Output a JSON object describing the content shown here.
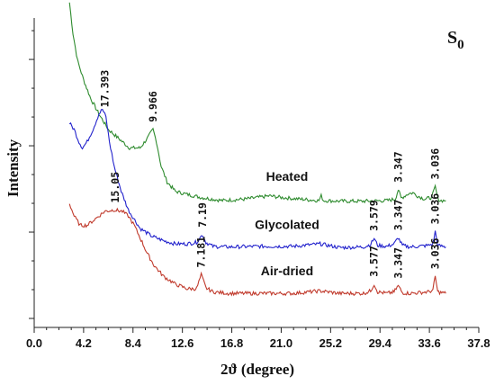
{
  "chart_data": {
    "type": "line",
    "corner_label": "S",
    "corner_label_subscript": "0",
    "xlabel": "2ϑ (degree)",
    "ylabel": "Intensity",
    "xlim": [
      0.0,
      37.8
    ],
    "xticks": [
      "0.0",
      "4.2",
      "8.4",
      "12.6",
      "16.8",
      "21.0",
      "25.2",
      "29.4",
      "33.6",
      "37.8"
    ],
    "series": [
      {
        "name": "Heated",
        "color": "#2e8b2e",
        "x": [
          3.0,
          3.3,
          3.7,
          4.2,
          4.8,
          5.5,
          6.3,
          7.2,
          8.1,
          9.0,
          9.6,
          10.1,
          10.4,
          10.8,
          11.3,
          12.0,
          13.0,
          14.2,
          16.0,
          18.0,
          20.0,
          21.0,
          22.5,
          24.2,
          24.4,
          24.6,
          26.0,
          28.0,
          30.0,
          30.7,
          30.95,
          31.2,
          31.8,
          32.2,
          32.6,
          33.2,
          33.8,
          34.1,
          34.3,
          34.5,
          35.0
        ],
        "values": [
          1.05,
          0.95,
          0.86,
          0.8,
          0.74,
          0.69,
          0.64,
          0.61,
          0.58,
          0.58,
          0.61,
          0.64,
          0.6,
          0.52,
          0.47,
          0.44,
          0.43,
          0.42,
          0.41,
          0.415,
          0.425,
          0.42,
          0.415,
          0.41,
          0.425,
          0.41,
          0.408,
          0.408,
          0.41,
          0.415,
          0.445,
          0.418,
          0.432,
          0.435,
          0.425,
          0.415,
          0.42,
          0.455,
          0.418,
          0.41,
          0.41
        ],
        "peaks": [
          {
            "x": 10.1,
            "label": "9.966"
          },
          {
            "x": 30.95,
            "label": "3.347"
          },
          {
            "x": 34.1,
            "label": "3.036"
          }
        ]
      },
      {
        "name": "Glycolated",
        "color": "#2222cc",
        "x": [
          3.0,
          3.4,
          3.8,
          4.1,
          4.5,
          5.0,
          5.5,
          5.8,
          6.1,
          6.4,
          6.8,
          7.4,
          8.0,
          9.0,
          10.0,
          11.0,
          12.0,
          13.0,
          13.8,
          14.3,
          14.6,
          15.2,
          16.5,
          19.0,
          22.0,
          24.3,
          26.0,
          28.0,
          28.6,
          28.9,
          29.2,
          30.0,
          30.6,
          30.95,
          31.3,
          32.0,
          33.5,
          33.9,
          34.1,
          34.3,
          35.0
        ],
        "values": [
          0.66,
          0.64,
          0.6,
          0.58,
          0.6,
          0.64,
          0.69,
          0.705,
          0.68,
          0.6,
          0.52,
          0.44,
          0.38,
          0.32,
          0.295,
          0.28,
          0.27,
          0.27,
          0.275,
          0.3,
          0.275,
          0.262,
          0.26,
          0.262,
          0.262,
          0.27,
          0.258,
          0.26,
          0.268,
          0.288,
          0.265,
          0.262,
          0.27,
          0.29,
          0.265,
          0.26,
          0.265,
          0.27,
          0.31,
          0.265,
          0.26
        ],
        "peaks": [
          {
            "x": 6.0,
            "label": "17.393"
          },
          {
            "x": 14.3,
            "label": "7.19"
          },
          {
            "x": 28.9,
            "label": "3.579"
          },
          {
            "x": 30.95,
            "label": "3.347"
          },
          {
            "x": 34.1,
            "label": "3.036"
          }
        ]
      },
      {
        "name": "Air-dried",
        "color": "#c0392b",
        "x": [
          3.0,
          3.4,
          3.9,
          4.5,
          5.0,
          5.5,
          6.0,
          6.8,
          7.5,
          8.0,
          8.5,
          9.0,
          9.6,
          10.2,
          11.0,
          12.0,
          13.0,
          13.8,
          14.2,
          14.6,
          15.2,
          16.5,
          19.0,
          22.0,
          24.3,
          26.0,
          28.0,
          28.6,
          28.9,
          29.2,
          30.0,
          30.6,
          30.95,
          31.3,
          32.0,
          33.5,
          33.9,
          34.1,
          34.3,
          35.0
        ],
        "values": [
          0.4,
          0.36,
          0.33,
          0.33,
          0.345,
          0.36,
          0.375,
          0.38,
          0.375,
          0.36,
          0.33,
          0.29,
          0.24,
          0.2,
          0.165,
          0.14,
          0.125,
          0.125,
          0.17,
          0.128,
          0.115,
          0.11,
          0.11,
          0.11,
          0.118,
          0.11,
          0.11,
          0.118,
          0.14,
          0.115,
          0.11,
          0.115,
          0.135,
          0.112,
          0.11,
          0.115,
          0.12,
          0.165,
          0.115,
          0.11
        ],
        "peaks": [
          {
            "x": 6.9,
            "label": "15.05"
          },
          {
            "x": 14.2,
            "label": "7.181"
          },
          {
            "x": 28.9,
            "label": "3.577"
          },
          {
            "x": 30.95,
            "label": "3.347"
          },
          {
            "x": 34.1,
            "label": "3.036"
          }
        ]
      }
    ]
  }
}
